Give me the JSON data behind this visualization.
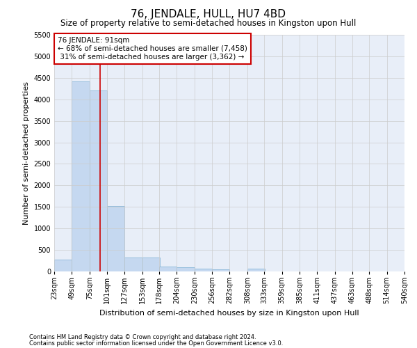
{
  "title": "76, JENDALE, HULL, HU7 4BD",
  "subtitle": "Size of property relative to semi-detached houses in Kingston upon Hull",
  "xlabel": "Distribution of semi-detached houses by size in Kingston upon Hull",
  "ylabel": "Number of semi-detached properties",
  "footer1": "Contains HM Land Registry data © Crown copyright and database right 2024.",
  "footer2": "Contains public sector information licensed under the Open Government Licence v3.0.",
  "annotation_line1": "76 JENDALE: 91sqm",
  "annotation_line2": "← 68% of semi-detached houses are smaller (7,458)",
  "annotation_line3": " 31% of semi-detached houses are larger (3,362) →",
  "bin_labels": [
    "23sqm",
    "49sqm",
    "75sqm",
    "101sqm",
    "127sqm",
    "153sqm",
    "178sqm",
    "204sqm",
    "230sqm",
    "256sqm",
    "282sqm",
    "308sqm",
    "333sqm",
    "359sqm",
    "385sqm",
    "411sqm",
    "437sqm",
    "463sqm",
    "488sqm",
    "514sqm",
    "540sqm"
  ],
  "bin_edges": [
    23,
    49,
    75,
    101,
    127,
    153,
    178,
    204,
    230,
    256,
    282,
    308,
    333,
    359,
    385,
    411,
    437,
    463,
    488,
    514,
    540
  ],
  "bar_values": [
    270,
    4420,
    4200,
    1520,
    330,
    320,
    120,
    90,
    65,
    55,
    0,
    60,
    0,
    0,
    0,
    0,
    0,
    0,
    0,
    0
  ],
  "bar_color": "#c5d8f0",
  "bar_edge_color": "#7bafd4",
  "vline_color": "#cc0000",
  "vline_x": 91,
  "ylim": [
    0,
    5500
  ],
  "yticks": [
    0,
    500,
    1000,
    1500,
    2000,
    2500,
    3000,
    3500,
    4000,
    4500,
    5000,
    5500
  ],
  "grid_color": "#cccccc",
  "bg_color": "#e8eef8",
  "box_color": "#ffffff",
  "title_fontsize": 11,
  "subtitle_fontsize": 8.5,
  "axis_label_fontsize": 8,
  "tick_fontsize": 7,
  "annotation_fontsize": 7.5
}
